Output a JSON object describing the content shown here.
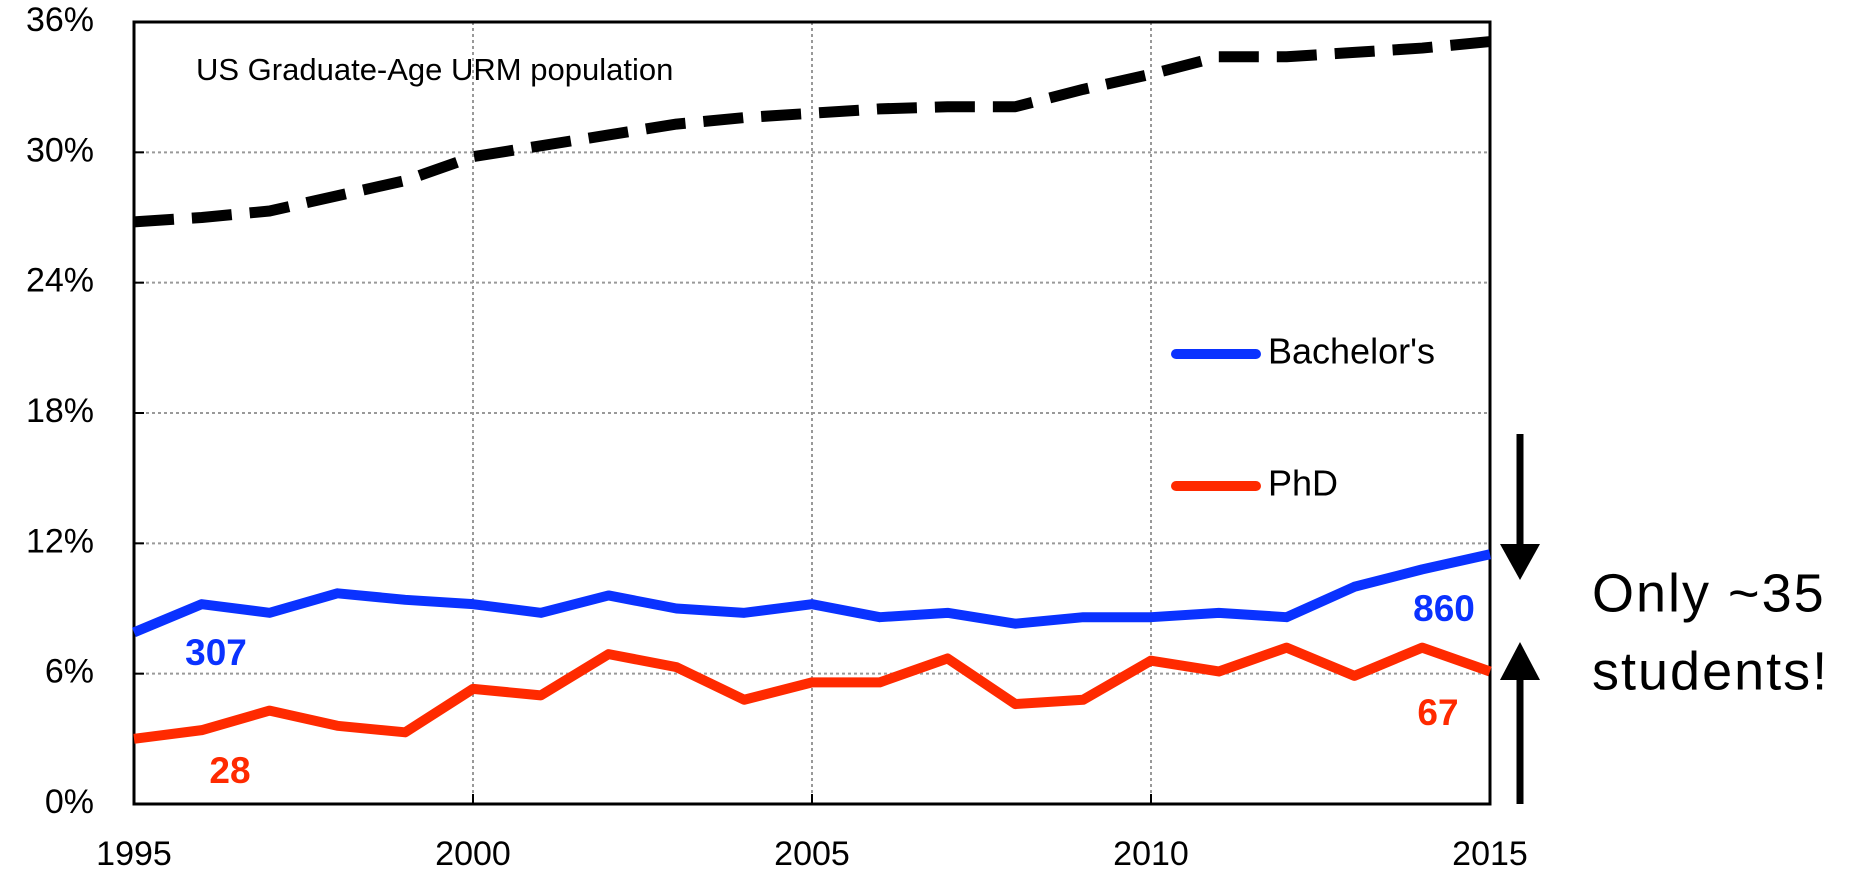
{
  "chart_data": {
    "type": "line",
    "x": [
      1995,
      1996,
      1997,
      1998,
      1999,
      2000,
      2001,
      2002,
      2003,
      2004,
      2005,
      2006,
      2007,
      2008,
      2009,
      2010,
      2011,
      2012,
      2013,
      2014,
      2015
    ],
    "series": [
      {
        "name": "US Graduate-Age URM population",
        "color": "#000000",
        "dashed": true,
        "values": [
          26.8,
          27.0,
          27.3,
          28.0,
          28.7,
          29.8,
          30.3,
          30.8,
          31.3,
          31.6,
          31.8,
          32.0,
          32.1,
          32.1,
          32.9,
          33.6,
          34.4,
          34.4,
          34.6,
          34.8,
          35.1
        ]
      },
      {
        "name": "Bachelor's",
        "color": "#0a32ff",
        "dashed": false,
        "values": [
          7.9,
          9.2,
          8.8,
          9.7,
          9.4,
          9.2,
          8.8,
          9.6,
          9.0,
          8.8,
          9.2,
          8.6,
          8.8,
          8.3,
          8.6,
          8.6,
          8.8,
          8.6,
          10.0,
          10.8,
          11.5
        ]
      },
      {
        "name": "PhD",
        "color": "#ff2a00",
        "dashed": false,
        "values": [
          3.0,
          3.4,
          4.3,
          3.6,
          3.3,
          5.3,
          5.0,
          6.9,
          6.3,
          4.8,
          5.6,
          5.6,
          6.7,
          4.6,
          4.8,
          6.6,
          6.1,
          7.2,
          5.9,
          7.2,
          6.1
        ]
      }
    ],
    "xlim": [
      1995,
      2015
    ],
    "xticks": [
      1995,
      2000,
      2005,
      2010,
      2015
    ],
    "ylim": [
      0,
      36
    ],
    "yticks": [
      {
        "value": 0,
        "label": "0%"
      },
      {
        "value": 6,
        "label": "6%"
      },
      {
        "value": 12,
        "label": "12%"
      },
      {
        "value": 18,
        "label": "18%"
      },
      {
        "value": 24,
        "label": "24%"
      },
      {
        "value": 30,
        "label": "30%"
      },
      {
        "value": 36,
        "label": "36%"
      }
    ],
    "grid": true,
    "annotations": [
      {
        "text": "307",
        "color": "#0a32ff"
      },
      {
        "text": "28",
        "color": "#ff2a00"
      },
      {
        "text": "860",
        "color": "#0a32ff"
      },
      {
        "text": "67",
        "color": "#ff2a00"
      },
      {
        "text": "Only ~35",
        "color": "#000000"
      },
      {
        "text": "students!",
        "color": "#000000"
      }
    ]
  }
}
